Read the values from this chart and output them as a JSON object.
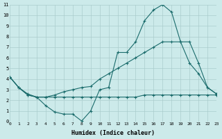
{
  "xlabel": "Humidex (Indice chaleur)",
  "bg_color": "#cceaea",
  "grid_color": "#aacccc",
  "line_color": "#1a6b6b",
  "xlim": [
    0,
    23
  ],
  "ylim": [
    0,
    11
  ],
  "xticks": [
    0,
    1,
    2,
    3,
    4,
    5,
    6,
    7,
    8,
    9,
    10,
    11,
    12,
    13,
    14,
    15,
    16,
    17,
    18,
    19,
    20,
    21,
    22,
    23
  ],
  "yticks": [
    0,
    1,
    2,
    3,
    4,
    5,
    6,
    7,
    8,
    9,
    10,
    11
  ],
  "line1_x": [
    0,
    1,
    2,
    3,
    4,
    5,
    6,
    7,
    8,
    9,
    10,
    11,
    12,
    13,
    14,
    15,
    16,
    17,
    18,
    19,
    20,
    21,
    22,
    23
  ],
  "line1_y": [
    4.2,
    3.2,
    2.6,
    2.3,
    1.5,
    0.9,
    0.7,
    0.7,
    0.05,
    1.0,
    3.0,
    3.2,
    6.5,
    6.5,
    7.5,
    9.5,
    10.5,
    11.0,
    10.3,
    7.5,
    5.5,
    4.5,
    3.2,
    2.6
  ],
  "line2_x": [
    0,
    1,
    2,
    3,
    4,
    5,
    6,
    7,
    8,
    9,
    10,
    11,
    12,
    13,
    14,
    15,
    16,
    17,
    18,
    19,
    20,
    21,
    22,
    23
  ],
  "line2_y": [
    4.2,
    3.2,
    2.5,
    2.3,
    2.3,
    2.3,
    2.3,
    2.3,
    2.3,
    2.3,
    2.3,
    2.3,
    2.3,
    2.3,
    2.3,
    2.5,
    2.5,
    2.5,
    2.5,
    2.5,
    2.5,
    2.5,
    2.5,
    2.5
  ],
  "line3_x": [
    0,
    1,
    2,
    3,
    4,
    5,
    6,
    7,
    8,
    9,
    10,
    11,
    12,
    13,
    14,
    15,
    16,
    17,
    18,
    19,
    20,
    21,
    22,
    23
  ],
  "line3_y": [
    4.2,
    3.2,
    2.5,
    2.3,
    2.3,
    2.5,
    2.8,
    3.0,
    3.2,
    3.3,
    4.0,
    4.5,
    5.0,
    5.5,
    6.0,
    6.5,
    7.0,
    7.5,
    7.5,
    7.5,
    7.5,
    5.5,
    3.2,
    2.6
  ]
}
